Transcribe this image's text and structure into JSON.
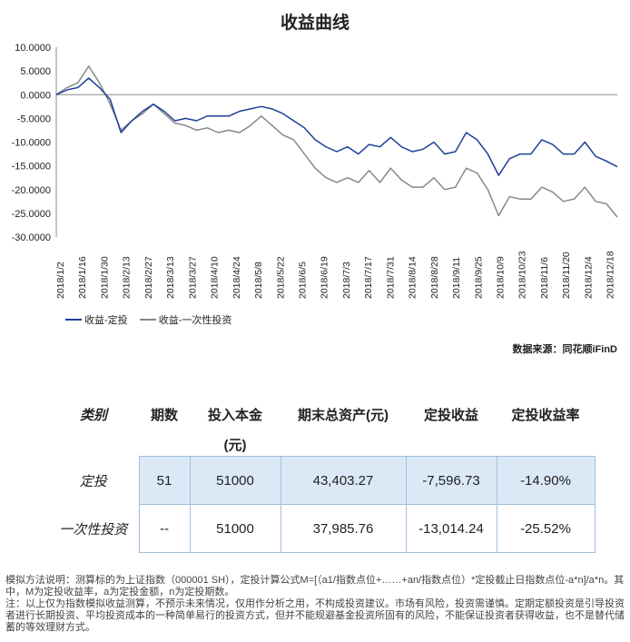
{
  "title": "收益曲线",
  "chart_data": {
    "type": "line",
    "title": "收益曲线",
    "ylim": [
      -30000,
      10000
    ],
    "yticks": [
      "10.0000",
      "5.0000",
      "0.0000",
      "-5.0000",
      "-10.0000",
      "-15.0000",
      "-20.0000",
      "-25.0000",
      "-30.0000"
    ],
    "ytick_values": [
      10000,
      5000,
      0,
      -5000,
      -10000,
      -15000,
      -20000,
      -25000,
      -30000
    ],
    "xticks": [
      "2018/1/2",
      "2018/1/16",
      "2018/1/30",
      "2018/2/13",
      "2018/2/27",
      "2018/3/13",
      "2018/3/27",
      "2018/4/10",
      "2018/4/24",
      "2018/5/8",
      "2018/5/22",
      "2018/6/5",
      "2018/6/19",
      "2018/7/3",
      "2018/7/17",
      "2018/7/31",
      "2018/8/14",
      "2018/8/28",
      "2018/9/11",
      "2018/9/25",
      "2018/10/9",
      "2018/10/23",
      "2018/11/6",
      "2018/11/20",
      "2018/12/4",
      "2018/12/18"
    ],
    "x": [
      "2018/1/2",
      "2018/1/9",
      "2018/1/16",
      "2018/1/23",
      "2018/1/30",
      "2018/2/6",
      "2018/2/13",
      "2018/2/20",
      "2018/2/27",
      "2018/3/6",
      "2018/3/13",
      "2018/3/20",
      "2018/3/27",
      "2018/4/3",
      "2018/4/10",
      "2018/4/17",
      "2018/4/24",
      "2018/5/1",
      "2018/5/8",
      "2018/5/15",
      "2018/5/22",
      "2018/5/29",
      "2018/6/5",
      "2018/6/12",
      "2018/6/19",
      "2018/6/26",
      "2018/7/3",
      "2018/7/10",
      "2018/7/17",
      "2018/7/24",
      "2018/7/31",
      "2018/8/7",
      "2018/8/14",
      "2018/8/21",
      "2018/8/28",
      "2018/9/4",
      "2018/9/11",
      "2018/9/18",
      "2018/9/25",
      "2018/10/2",
      "2018/10/9",
      "2018/10/16",
      "2018/10/23",
      "2018/10/30",
      "2018/11/6",
      "2018/11/13",
      "2018/11/20",
      "2018/11/27",
      "2018/12/4",
      "2018/12/11",
      "2018/12/18",
      "2018/12/25",
      "2018/12/28"
    ],
    "series": [
      {
        "name": "收益-定投",
        "color": "#1f3f99",
        "values": [
          0,
          1000,
          1500,
          3500,
          1500,
          -1000,
          -8000,
          -5500,
          -3500,
          -2000,
          -3500,
          -5500,
          -5000,
          -5500,
          -4500,
          -4500,
          -4500,
          -3500,
          -3000,
          -2500,
          -3000,
          -4000,
          -5500,
          -7000,
          -9500,
          -11000,
          -12000,
          -11000,
          -12500,
          -10500,
          -11000,
          -9000,
          -11000,
          -12000,
          -11500,
          -10000,
          -12500,
          -12000,
          -8000,
          -9500,
          -12500,
          -17000,
          -13500,
          -12500,
          -12500,
          -9500,
          -10500,
          -12500,
          -12500,
          -10000,
          -13000,
          -14000,
          -15200
        ]
      },
      {
        "name": "收益-一次性投资",
        "color": "#888888",
        "values": [
          0,
          1500,
          2500,
          6000,
          2500,
          -2000,
          -7500,
          -5500,
          -4000,
          -2000,
          -4000,
          -6000,
          -6500,
          -7500,
          -7000,
          -8000,
          -7500,
          -8000,
          -6500,
          -4500,
          -6500,
          -8500,
          -9500,
          -12500,
          -15500,
          -17500,
          -18500,
          -17500,
          -18500,
          -16000,
          -18500,
          -15500,
          -18000,
          -19500,
          -19500,
          -17500,
          -20000,
          -19500,
          -15500,
          -16500,
          -20000,
          -25500,
          -21500,
          -22000,
          -22000,
          -19500,
          -20500,
          -22500,
          -22000,
          -19500,
          -22500,
          -23000,
          -25800
        ]
      }
    ]
  },
  "legend": {
    "items": [
      {
        "label": "收益-定投",
        "color": "#1f3f99"
      },
      {
        "label": "收益-一次性投资",
        "color": "#888888"
      }
    ]
  },
  "source_label": "数据来源：同花顺iFinD",
  "table": {
    "headers": [
      "类别",
      "期数",
      "投入本金",
      "期末总资产(元)",
      "定投收益",
      "定投收益率"
    ],
    "units_row": "(元)",
    "rows": [
      {
        "category": "定投",
        "periods": "51",
        "principal": "51000",
        "end_assets": "43,403.27",
        "profit": "-7,596.73",
        "rate": "-14.90%"
      },
      {
        "category": "一次性投资",
        "periods": "--",
        "principal": "51000",
        "end_assets": "37,985.76",
        "profit": "-13,014.24",
        "rate": "-25.52%"
      }
    ]
  },
  "notes": {
    "line1": "模拟方法说明：测算标的为上证指数（000001 SH），定投计算公式M=[（a1/指数点位+……+an/指数点位）*定投截止日指数点位-a*n]/a*n。其中，M为定投收益率，a为定投金额，n为定投期数。",
    "line2": "注：以上仅为指数模拟收益测算，不预示未来情况，仅用作分析之用，不构成投资建议。市场有风险，投资需谨慎。定期定额投资是引导投资者进行长期投资、平均投资成本的一种简单易行的投资方式，但并不能规避基金投资所固有的风险，不能保证投资者获得收益，也不是替代储蓄的等效理财方式。"
  }
}
